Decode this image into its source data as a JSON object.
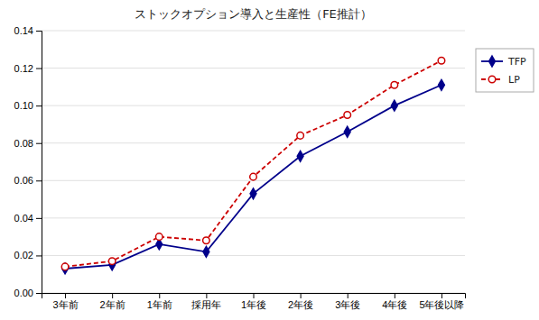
{
  "chart_data": {
    "type": "line",
    "title": "ストックオプション導入と生産性（FE推計）",
    "categories": [
      "3年前",
      "2年前",
      "1年前",
      "採用年",
      "1年後",
      "2年後",
      "3年後",
      "4年後",
      "5年後以降"
    ],
    "series": [
      {
        "name": "TFP",
        "color": "#00008B",
        "marker": "diamond",
        "line_style": "solid",
        "values": [
          0.013,
          0.015,
          0.026,
          0.022,
          0.053,
          0.073,
          0.086,
          0.1,
          0.111
        ]
      },
      {
        "name": "LP",
        "color": "#CC0000",
        "marker": "circle",
        "line_style": "dashed",
        "values": [
          0.014,
          0.017,
          0.03,
          0.028,
          0.062,
          0.084,
          0.095,
          0.111,
          0.124
        ]
      }
    ],
    "ylim": [
      0.0,
      0.14
    ],
    "yticks": [
      {
        "value": 0.0,
        "label": "0.00"
      },
      {
        "value": 0.02,
        "label": "0.02"
      },
      {
        "value": 0.04,
        "label": "0.04"
      },
      {
        "value": 0.06,
        "label": "0.06"
      },
      {
        "value": 0.08,
        "label": "0.08"
      },
      {
        "value": 0.1,
        "label": "0.10"
      },
      {
        "value": 0.12,
        "label": "0.12"
      },
      {
        "value": 0.14,
        "label": "0.14"
      }
    ],
    "grid": true,
    "legend": "right"
  }
}
